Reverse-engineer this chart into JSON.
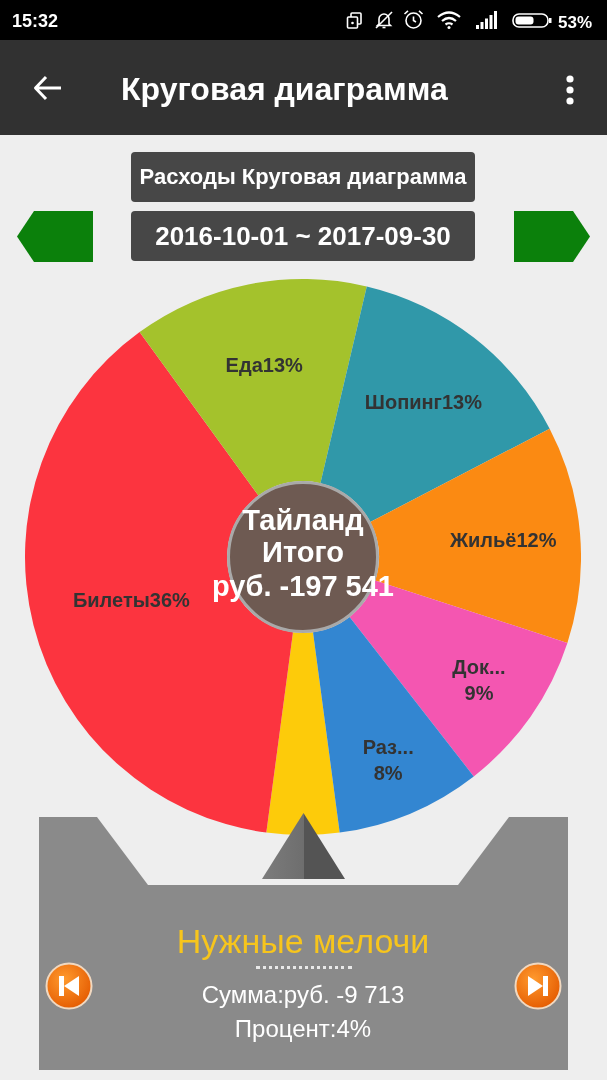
{
  "chart_data": {
    "type": "donut",
    "title": "Расходы Круговая диаграмма",
    "subtitle": "2016-10-01 ~ 2017-09-30",
    "categories": [
      "Нужные мелочи",
      "Билеты",
      "Еда",
      "Шопинг",
      "Жильё",
      "Док...",
      "Раз..."
    ],
    "values": [
      4,
      36,
      13,
      13,
      12,
      9,
      8
    ],
    "colors": [
      "#fdcb0a",
      "#fc343f",
      "#a4c22c",
      "#3098a9",
      "#fb8a12",
      "#f456b1",
      "#3386d1"
    ],
    "value_labels": [
      null,
      "36%",
      "13%",
      "13%",
      "12%",
      "9%",
      "8%"
    ],
    "annotations": [
      "15:32",
      "53%",
      "Круговая диаграмма",
      "Тайланд",
      "Итого",
      "руб. -197 541",
      "Сумма:руб. -9 713",
      "Процент:4%"
    ]
  }
}
